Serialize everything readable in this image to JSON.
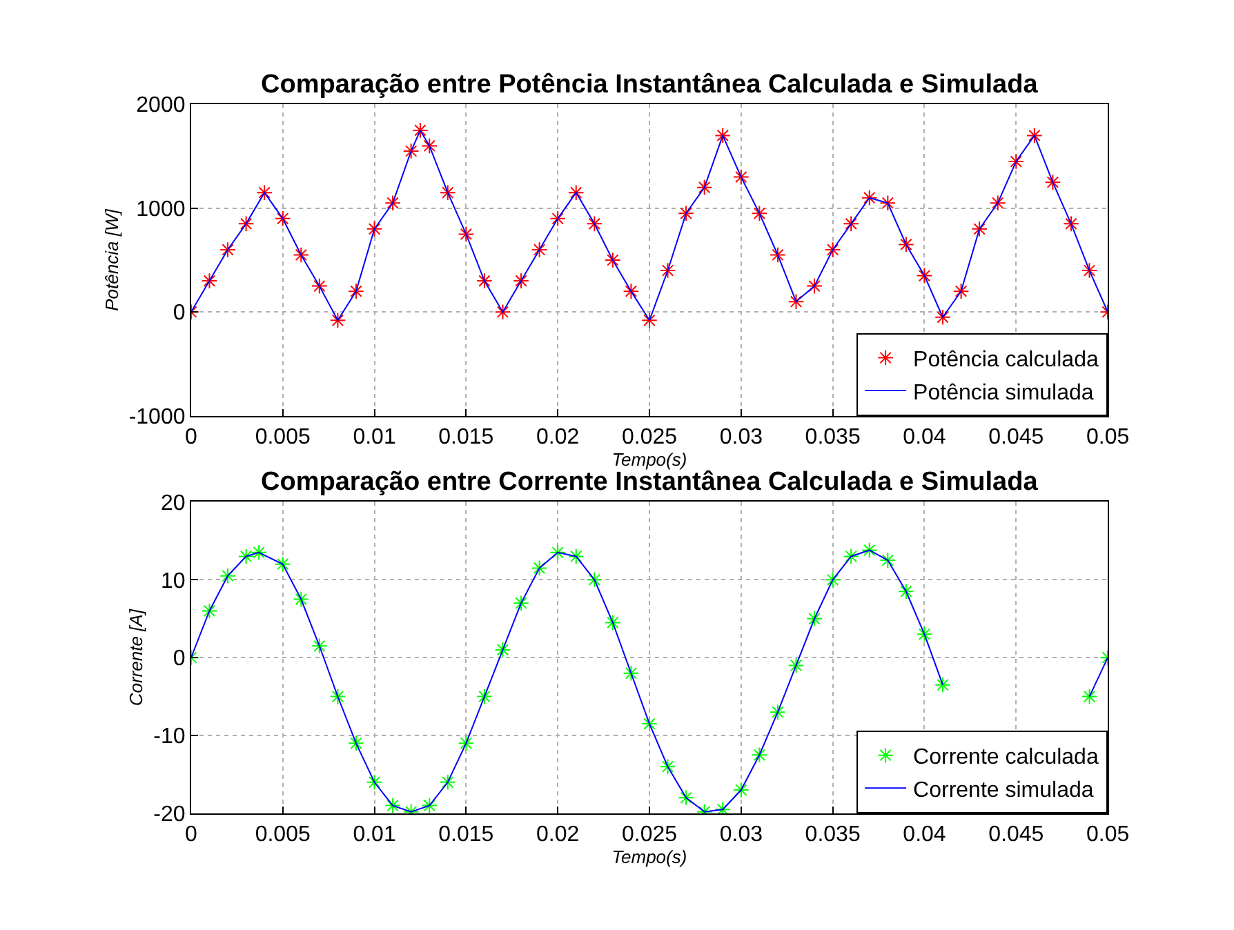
{
  "chart_data": [
    {
      "type": "line",
      "title": "Comparação entre Potência Instantânea Calculada e Simulada",
      "xlabel": "Tempo(s)",
      "ylabel": "Potência [W]",
      "x": [
        0,
        0.001,
        0.002,
        0.003,
        0.004,
        0.005,
        0.006,
        0.007,
        0.008,
        0.009,
        0.01,
        0.011,
        0.012,
        0.0125,
        0.013,
        0.014,
        0.015,
        0.016,
        0.017,
        0.018,
        0.019,
        0.02,
        0.021,
        0.022,
        0.023,
        0.024,
        0.025,
        0.026,
        0.027,
        0.028,
        0.029,
        0.03,
        0.031,
        0.032,
        0.033,
        0.034,
        0.035,
        0.036,
        0.037,
        0.038,
        0.039,
        0.04,
        0.041,
        0.042,
        0.043,
        0.044,
        0.045,
        0.046,
        0.047,
        0.048,
        0.049,
        0.05
      ],
      "series": [
        {
          "name": "Potência calculada",
          "type": "scatter",
          "marker": "cross",
          "color": "#ff0000",
          "values": [
            0,
            300,
            600,
            850,
            1150,
            900,
            550,
            250,
            -80,
            200,
            800,
            1050,
            1550,
            1750,
            1600,
            1150,
            750,
            300,
            0,
            300,
            600,
            900,
            1150,
            850,
            500,
            200,
            -80,
            400,
            950,
            1200,
            1700,
            1300,
            950,
            550,
            100,
            250,
            600,
            850,
            1100,
            1050,
            650,
            350,
            -50,
            200,
            800,
            1050,
            1450,
            1700,
            1250,
            850,
            400,
            0
          ]
        },
        {
          "name": "Potência simulada",
          "color": "#0000ff",
          "values": [
            0,
            300,
            600,
            850,
            1150,
            900,
            550,
            250,
            -80,
            200,
            800,
            1050,
            1550,
            1750,
            1600,
            1150,
            750,
            300,
            0,
            300,
            600,
            900,
            1150,
            850,
            500,
            200,
            -80,
            400,
            950,
            1200,
            1700,
            1300,
            950,
            550,
            100,
            250,
            600,
            850,
            1100,
            1050,
            650,
            350,
            -50,
            200,
            800,
            1050,
            1450,
            1700,
            1250,
            850,
            400,
            0
          ]
        }
      ],
      "xlim": [
        0,
        0.05
      ],
      "xticks": [
        0,
        0.005,
        0.01,
        0.015,
        0.02,
        0.025,
        0.03,
        0.035,
        0.04,
        0.045,
        0.05
      ],
      "ylim": [
        -1000,
        2000
      ],
      "yticks": [
        -1000,
        0,
        1000,
        2000
      ],
      "grid": true,
      "legend": "bottom right"
    },
    {
      "type": "line",
      "title": "Comparação entre Corrente Instantânea Calculada e Simulada",
      "xlabel": "Tempo(s)",
      "ylabel": "Corrente [A]",
      "x": [
        0,
        0.001,
        0.002,
        0.003,
        0.0037,
        0.005,
        0.006,
        0.007,
        0.008,
        0.009,
        0.01,
        0.011,
        0.012,
        0.013,
        0.014,
        0.015,
        0.016,
        0.017,
        0.018,
        0.019,
        0.02,
        0.021,
        0.022,
        0.023,
        0.024,
        0.025,
        0.026,
        0.027,
        0.028,
        0.029,
        0.03,
        0.031,
        0.032,
        0.033,
        0.034,
        0.035,
        0.036,
        0.037,
        0.038,
        0.039,
        0.04,
        0.041,
        0.042,
        0.043,
        0.044,
        0.045,
        0.046,
        0.047,
        0.048,
        0.049,
        0.05
      ],
      "series": [
        {
          "name": "Corrente calculada",
          "type": "scatter",
          "marker": "cross",
          "color": "#00ff00",
          "values": [
            0,
            6,
            10.5,
            13,
            13.5,
            12,
            7.5,
            1.5,
            -5,
            -11,
            -16,
            -19,
            -19.8,
            -19,
            -16,
            -11,
            -5,
            1,
            7,
            11.5,
            13.5,
            13,
            10,
            4.5,
            -2,
            -8.5,
            -14,
            -18,
            -19.8,
            -19.5,
            -17,
            -12.5,
            -7,
            -1,
            5,
            10,
            13,
            13.8,
            12.5,
            8.5,
            3,
            -3.5,
            null,
            null,
            null,
            null,
            null,
            null,
            null,
            -5,
            0
          ]
        },
        {
          "name": "Corrente simulada",
          "color": "#0000ff",
          "values": [
            0,
            6,
            10.5,
            13,
            13.5,
            12,
            7.5,
            1.5,
            -5,
            -11,
            -16,
            -19,
            -19.8,
            -19,
            -16,
            -11,
            -5,
            1,
            7,
            11.5,
            13.5,
            13,
            10,
            4.5,
            -2,
            -8.5,
            -14,
            -18,
            -19.8,
            -19.5,
            -17,
            -12.5,
            -7,
            -1,
            5,
            10,
            13,
            13.8,
            12.5,
            8.5,
            3,
            -3.5,
            null,
            null,
            null,
            null,
            null,
            null,
            null,
            -5,
            0
          ]
        }
      ],
      "xlim": [
        0,
        0.05
      ],
      "xticks": [
        0,
        0.005,
        0.01,
        0.015,
        0.02,
        0.025,
        0.03,
        0.035,
        0.04,
        0.045,
        0.05
      ],
      "ylim": [
        -20,
        20
      ],
      "yticks": [
        -20,
        -10,
        0,
        10,
        20
      ],
      "grid": true,
      "legend": "bottom right"
    }
  ]
}
